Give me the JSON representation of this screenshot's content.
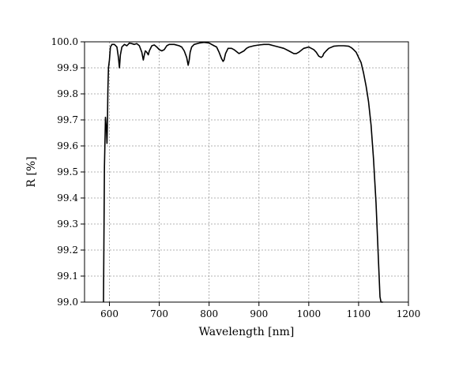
{
  "chart_data": {
    "type": "line",
    "title": "",
    "xlabel": "Wavelength [nm]",
    "ylabel": "R [%]",
    "xlim": [
      550,
      1200
    ],
    "ylim": [
      99.0,
      100.0
    ],
    "x_ticks": [
      600,
      700,
      800,
      900,
      1000,
      1100,
      1200
    ],
    "x_tick_labels": [
      "600",
      "700",
      "800",
      "900",
      "1000",
      "1100",
      "1200"
    ],
    "y_ticks": [
      99.0,
      99.1,
      99.2,
      99.3,
      99.4,
      99.5,
      99.6,
      99.7,
      99.8,
      99.9,
      100.0
    ],
    "y_tick_labels": [
      "99.0",
      "99.1",
      "99.2",
      "99.3",
      "99.4",
      "99.5",
      "99.6",
      "99.7",
      "99.8",
      "99.9",
      "100.0"
    ],
    "grid": true,
    "line_color": "#000000",
    "grid_color": "#9a9a9a",
    "series": [
      {
        "x": [
          588,
          590,
          592,
          594,
          595,
          596,
          597,
          598,
          600,
          602,
          605,
          610,
          615,
          618,
          620,
          622,
          625,
          630,
          635,
          640,
          645,
          650,
          655,
          660,
          665,
          668,
          670,
          672,
          675,
          678,
          680,
          685,
          690,
          695,
          700,
          705,
          710,
          715,
          720,
          730,
          740,
          745,
          750,
          755,
          758,
          760,
          762,
          765,
          770,
          780,
          790,
          800,
          810,
          815,
          820,
          825,
          828,
          830,
          833,
          838,
          845,
          850,
          860,
          870,
          875,
          880,
          890,
          900,
          910,
          920,
          930,
          940,
          950,
          960,
          970,
          975,
          980,
          990,
          1000,
          1010,
          1015,
          1020,
          1025,
          1028,
          1030,
          1035,
          1040,
          1050,
          1060,
          1070,
          1080,
          1085,
          1090,
          1095,
          1100,
          1105,
          1110,
          1115,
          1120,
          1125,
          1130,
          1135,
          1140,
          1143,
          1145,
          1147,
          1149
        ],
        "y": [
          99.0,
          99.52,
          99.71,
          99.66,
          99.61,
          99.69,
          99.82,
          99.9,
          99.93,
          99.98,
          99.99,
          99.99,
          99.98,
          99.94,
          99.9,
          99.95,
          99.98,
          99.99,
          99.985,
          99.995,
          99.993,
          99.99,
          99.993,
          99.985,
          99.96,
          99.93,
          99.95,
          99.965,
          99.96,
          99.95,
          99.965,
          99.985,
          99.988,
          99.98,
          99.97,
          99.965,
          99.97,
          99.985,
          99.99,
          99.99,
          99.985,
          99.98,
          99.965,
          99.94,
          99.91,
          99.93,
          99.96,
          99.98,
          99.99,
          99.995,
          99.998,
          99.995,
          99.985,
          99.98,
          99.96,
          99.935,
          99.925,
          99.93,
          99.955,
          99.975,
          99.975,
          99.97,
          99.955,
          99.965,
          99.975,
          99.98,
          99.985,
          99.988,
          99.99,
          99.99,
          99.985,
          99.98,
          99.975,
          99.965,
          99.955,
          99.955,
          99.96,
          99.975,
          99.98,
          99.97,
          99.96,
          99.945,
          99.94,
          99.945,
          99.955,
          99.965,
          99.975,
          99.983,
          99.985,
          99.985,
          99.983,
          99.978,
          99.97,
          99.96,
          99.94,
          99.92,
          99.88,
          99.83,
          99.77,
          99.68,
          99.55,
          99.38,
          99.15,
          99.02,
          99.0,
          99.0,
          99.0
        ]
      }
    ]
  }
}
